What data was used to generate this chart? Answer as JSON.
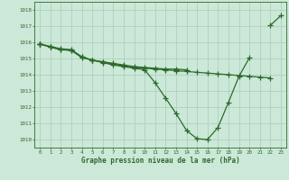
{
  "xlabel": "Graphe pression niveau de la mer (hPa)",
  "hours": [
    0,
    1,
    2,
    3,
    4,
    5,
    6,
    7,
    8,
    9,
    10,
    11,
    12,
    13,
    14,
    15,
    16,
    17,
    18,
    19,
    20,
    21,
    22,
    23
  ],
  "line_upper": [
    1015.9,
    null,
    null,
    null,
    null,
    null,
    null,
    null,
    null,
    null,
    null,
    null,
    null,
    null,
    null,
    null,
    null,
    null,
    null,
    null,
    null,
    null,
    1017.05,
    1017.65
  ],
  "line_main": [
    1015.9,
    1015.7,
    1015.55,
    1015.5,
    1015.1,
    1014.9,
    1014.75,
    1014.6,
    1014.5,
    1014.4,
    1014.3,
    1013.5,
    1012.55,
    1011.6,
    1010.55,
    1010.05,
    1010.0,
    1010.75,
    1012.3,
    1013.9,
    1015.05,
    null,
    null,
    null
  ],
  "line_mid1": [
    1015.9,
    1015.75,
    1015.6,
    1015.55,
    1015.1,
    1014.9,
    1014.8,
    1014.7,
    1014.6,
    1014.5,
    1014.45,
    1014.4,
    1014.35,
    1014.35,
    1014.3,
    null,
    null,
    null,
    null,
    null,
    null,
    null,
    null,
    null
  ],
  "line_flat": [
    1015.9,
    1015.7,
    1015.55,
    1015.5,
    1015.05,
    1014.9,
    1014.78,
    1014.65,
    1014.55,
    1014.45,
    1014.4,
    1014.35,
    1014.3,
    1014.25,
    1014.2,
    1014.15,
    1014.1,
    1014.05,
    1014.0,
    1013.95,
    1013.9,
    1013.85,
    1013.8,
    null
  ],
  "ylim": [
    1009.5,
    1018.5
  ],
  "yticks": [
    1010,
    1011,
    1012,
    1013,
    1014,
    1015,
    1016,
    1017,
    1018
  ],
  "line_color": "#2d6a2d",
  "bg_color": "#cce8d8",
  "grid_color": "#a8cdb8",
  "marker": "+",
  "linewidth": 0.9,
  "markersize": 4,
  "xlabel_fontsize": 5.5,
  "tick_fontsize": 4.2
}
